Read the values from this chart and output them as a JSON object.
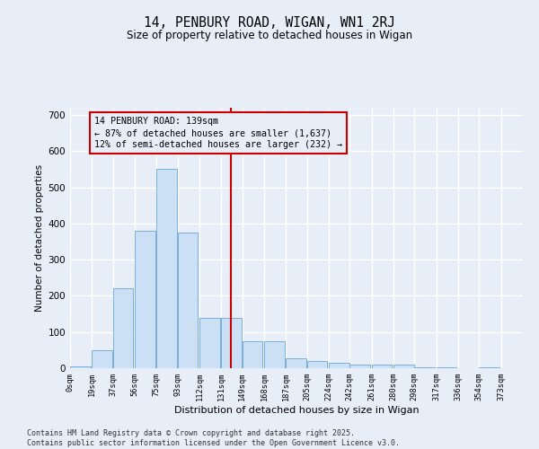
{
  "title": "14, PENBURY ROAD, WIGAN, WN1 2RJ",
  "subtitle": "Size of property relative to detached houses in Wigan",
  "xlabel": "Distribution of detached houses by size in Wigan",
  "ylabel": "Number of detached properties",
  "annotation_label": "14 PENBURY ROAD: 139sqm",
  "annotation_pct_smaller": "← 87% of detached houses are smaller (1,637)",
  "annotation_pct_larger": "12% of semi-detached houses are larger (232) →",
  "vline_x": 139,
  "bar_color": "#cce0f5",
  "bar_edge_color": "#7aaedb",
  "vline_color": "#cc0000",
  "background_color": "#e8eef8",
  "grid_color": "#ffffff",
  "bins_start": [
    0,
    19,
    37,
    56,
    75,
    93,
    112,
    131,
    149,
    168,
    187,
    205,
    224,
    242,
    261,
    280,
    298,
    317,
    336,
    354
  ],
  "bin_width": 18,
  "bar_heights": [
    6,
    50,
    220,
    380,
    550,
    375,
    140,
    140,
    75,
    75,
    28,
    20,
    16,
    10,
    10,
    9,
    3,
    2,
    1,
    3
  ],
  "tick_labels": [
    "0sqm",
    "19sqm",
    "37sqm",
    "56sqm",
    "75sqm",
    "93sqm",
    "112sqm",
    "131sqm",
    "149sqm",
    "168sqm",
    "187sqm",
    "205sqm",
    "224sqm",
    "242sqm",
    "261sqm",
    "280sqm",
    "298sqm",
    "317sqm",
    "336sqm",
    "354sqm",
    "373sqm"
  ],
  "tick_positions": [
    0,
    19,
    37,
    56,
    75,
    93,
    112,
    131,
    149,
    168,
    187,
    205,
    224,
    242,
    261,
    280,
    298,
    317,
    336,
    354,
    373
  ],
  "xlim": [
    0,
    392
  ],
  "ylim": [
    0,
    720
  ],
  "yticks": [
    0,
    100,
    200,
    300,
    400,
    500,
    600,
    700
  ],
  "footnote": "Contains HM Land Registry data © Crown copyright and database right 2025.\nContains public sector information licensed under the Open Government Licence v3.0.",
  "figsize": [
    6.0,
    5.0
  ],
  "dpi": 100
}
